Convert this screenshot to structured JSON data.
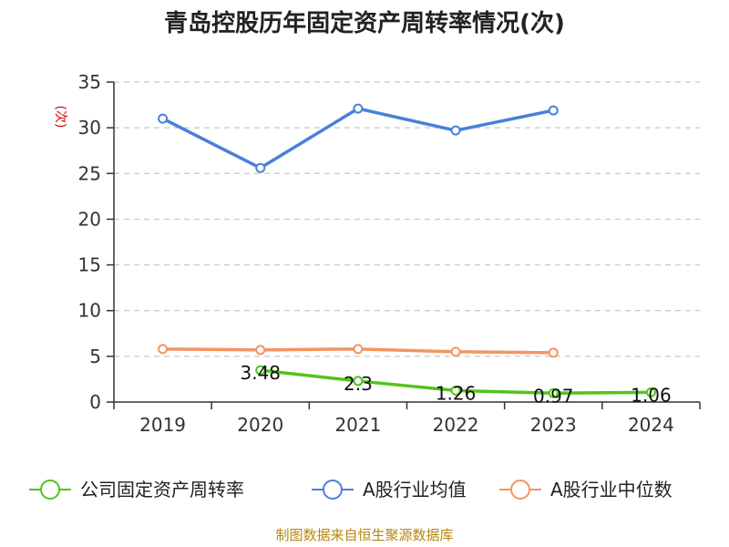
{
  "chart_data": {
    "type": "line",
    "title": "青岛控股历年固定资产周转率情况(次)",
    "ylabel": "(次)",
    "xlabel": "",
    "categories": [
      "2019",
      "2020",
      "2021",
      "2022",
      "2023",
      "2024"
    ],
    "ylim": [
      0,
      35
    ],
    "yticks": [
      0,
      5,
      10,
      15,
      20,
      25,
      30,
      35
    ],
    "grid": true,
    "legend_position": "bottom",
    "series": [
      {
        "name": "公司固定资产周转率",
        "color": "#52c41a",
        "values": [
          null,
          3.48,
          2.3,
          1.26,
          0.97,
          1.06
        ],
        "labels": [
          "",
          "3.48",
          "2.3",
          "1.26",
          "0.97",
          "1.06"
        ]
      },
      {
        "name": "A股行业均值",
        "color": "#4a7fdb",
        "values": [
          31.0,
          25.6,
          32.1,
          29.7,
          31.9,
          null
        ],
        "labels": []
      },
      {
        "name": "A股行业中位数",
        "color": "#f59462",
        "values": [
          5.8,
          5.7,
          5.8,
          5.5,
          5.4,
          null
        ],
        "labels": []
      }
    ],
    "source": "制图数据来自恒生聚源数据库"
  }
}
